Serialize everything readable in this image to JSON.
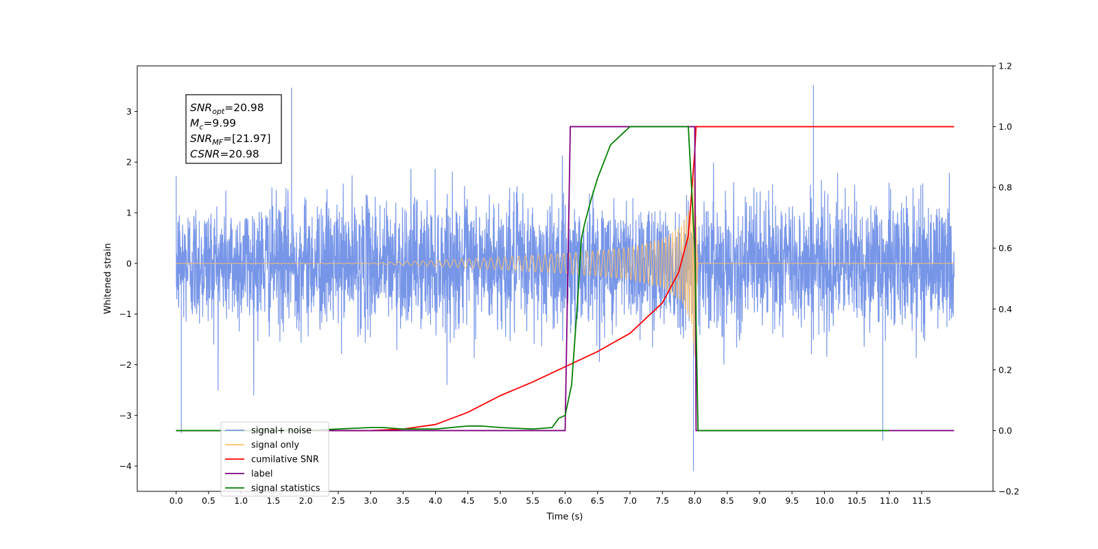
{
  "chart_data": {
    "type": "line",
    "xlabel": "Time (s)",
    "ylabel_left": "Whitened strain",
    "ylabel_right": "",
    "xlim": [
      -0.6,
      12.6
    ],
    "ylim_left": [
      -4.5,
      3.9
    ],
    "ylim_right": [
      -0.2,
      1.2
    ],
    "x_ticks": [
      0.0,
      0.5,
      1.0,
      1.5,
      2.0,
      2.5,
      3.0,
      3.5,
      4.0,
      4.5,
      5.0,
      5.5,
      6.0,
      6.5,
      7.0,
      7.5,
      8.0,
      8.5,
      9.0,
      9.5,
      10.0,
      10.5,
      11.0,
      11.5
    ],
    "x_tick_labels": [
      "0.0",
      "0.5",
      "1.0",
      "1.5",
      "2.0",
      "2.5",
      "3.0",
      "3.5",
      "4.0",
      "4.5",
      "5.0",
      "5.5",
      "6.0",
      "6.5",
      "7.0",
      "7.5",
      "8.0",
      "8.5",
      "9.0",
      "9.5",
      "10.0",
      "10.5",
      "11.0",
      "11.5"
    ],
    "y_ticks_left": [
      -4,
      -3,
      -2,
      -1,
      0,
      1,
      2,
      3
    ],
    "y_tick_labels_left": [
      "−4",
      "−3",
      "−2",
      "−1",
      "0",
      "1",
      "2",
      "3"
    ],
    "y_ticks_right": [
      -0.2,
      0.0,
      0.2,
      0.4,
      0.6,
      0.8,
      1.0,
      1.2
    ],
    "y_tick_labels_right": [
      "−0.2",
      "0.0",
      "0.2",
      "0.4",
      "0.6",
      "0.8",
      "1.0",
      "1.2"
    ],
    "grid": false,
    "legend_position": "bottom-left",
    "info_box": {
      "lines": [
        {
          "symbol": "SNR",
          "sub": "opt",
          "value": "=20.98"
        },
        {
          "symbol": "M",
          "sub": "c",
          "value": "=9.99"
        },
        {
          "symbol": "SNR",
          "sub": "MF",
          "value": "=[21.97]"
        },
        {
          "symbol": "CSNR",
          "sub": "",
          "value": "=20.98"
        }
      ]
    },
    "series": [
      {
        "name": "signal+ noise",
        "axis": "left",
        "color": "#7896e8",
        "style": "noise-band",
        "x_range": [
          0.0,
          12.0
        ],
        "typical_amplitude": 1.0,
        "peak_max": 3.5,
        "peak_min": -4.1
      },
      {
        "name": "signal only",
        "axis": "left",
        "color": "#ffc267",
        "style": "chirp",
        "x_range": [
          0.0,
          8.05
        ],
        "envelope_x": [
          0.0,
          3.0,
          4.0,
          5.0,
          6.0,
          6.5,
          7.0,
          7.5,
          7.8,
          7.95,
          8.0,
          8.05
        ],
        "envelope_amp": [
          0.0,
          0.01,
          0.06,
          0.12,
          0.2,
          0.25,
          0.32,
          0.48,
          0.75,
          1.2,
          1.9,
          0.0
        ]
      },
      {
        "name": "cumilative SNR",
        "axis": "right",
        "color": "#ff0000",
        "x": [
          0.0,
          3.0,
          3.5,
          4.0,
          4.5,
          5.0,
          5.5,
          6.0,
          6.5,
          7.0,
          7.5,
          7.75,
          7.9,
          8.0,
          8.02,
          12.0
        ],
        "y": [
          0.0,
          0.0,
          0.005,
          0.02,
          0.06,
          0.115,
          0.16,
          0.21,
          0.26,
          0.32,
          0.42,
          0.52,
          0.64,
          0.92,
          1.0,
          1.0
        ]
      },
      {
        "name": "label",
        "axis": "right",
        "color": "#800080",
        "x": [
          0.0,
          6.0,
          6.08,
          8.0,
          8.02,
          12.0
        ],
        "y": [
          0.0,
          0.0,
          1.0,
          1.0,
          0.0,
          0.0
        ]
      },
      {
        "name": "signal statistics",
        "axis": "right",
        "color": "#008000",
        "x": [
          0.0,
          2.0,
          2.5,
          3.0,
          3.2,
          3.5,
          4.0,
          4.5,
          4.7,
          5.0,
          5.5,
          5.8,
          5.9,
          6.0,
          6.1,
          6.15,
          6.2,
          6.25,
          6.3,
          6.4,
          6.5,
          6.7,
          6.9,
          7.0,
          7.5,
          7.9,
          8.0,
          8.05,
          11.0
        ],
        "y": [
          0.0,
          0.0,
          0.005,
          0.01,
          0.01,
          0.005,
          0.005,
          0.015,
          0.015,
          0.01,
          0.005,
          0.01,
          0.04,
          0.05,
          0.15,
          0.3,
          0.45,
          0.63,
          0.68,
          0.76,
          0.83,
          0.94,
          0.98,
          1.0,
          1.0,
          1.0,
          0.6,
          0.0,
          0.0
        ]
      }
    ],
    "legend_entries": [
      {
        "label": "signal+ noise",
        "color": "#7896e8"
      },
      {
        "label": "signal only",
        "color": "#ffc267"
      },
      {
        "label": "cumilative SNR",
        "color": "#ff0000"
      },
      {
        "label": "label",
        "color": "#800080"
      },
      {
        "label": "signal statistics",
        "color": "#008000"
      }
    ]
  }
}
